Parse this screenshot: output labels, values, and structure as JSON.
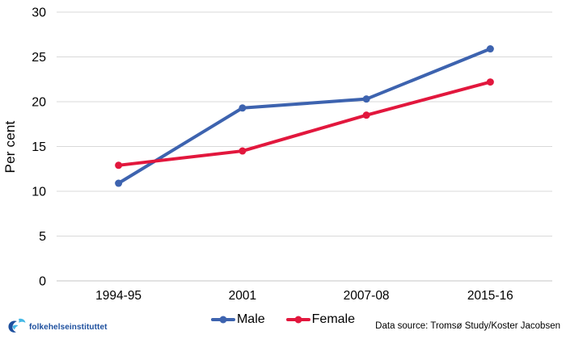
{
  "chart_data": {
    "type": "line",
    "title": "",
    "xlabel": "",
    "ylabel": "Per cent",
    "categories": [
      "1994-95",
      "2001",
      "2007-08",
      "2015-16"
    ],
    "series": [
      {
        "name": "Male",
        "color": "#3d63af",
        "values": [
          10.9,
          19.3,
          20.3,
          25.9
        ]
      },
      {
        "name": "Female",
        "color": "#e2173d",
        "values": [
          12.9,
          14.5,
          18.5,
          22.2
        ]
      }
    ],
    "ylim": [
      0,
      30
    ],
    "ytick_step": 5,
    "grid": "horizontal",
    "legend_position": "bottom-center"
  },
  "legend": {
    "male_label": "Male",
    "female_label": "Female"
  },
  "footer": {
    "logo_text": "folkehelseinstituttet",
    "data_source": "Data source: Tromsø Study/Koster Jacobsen"
  },
  "colors": {
    "gridline": "#d9d9d9",
    "axis_line": "#c6c6c6",
    "tick_text": "#000000",
    "logo_dark_blue": "#1d4f9e",
    "logo_light_blue": "#45b9e6"
  }
}
